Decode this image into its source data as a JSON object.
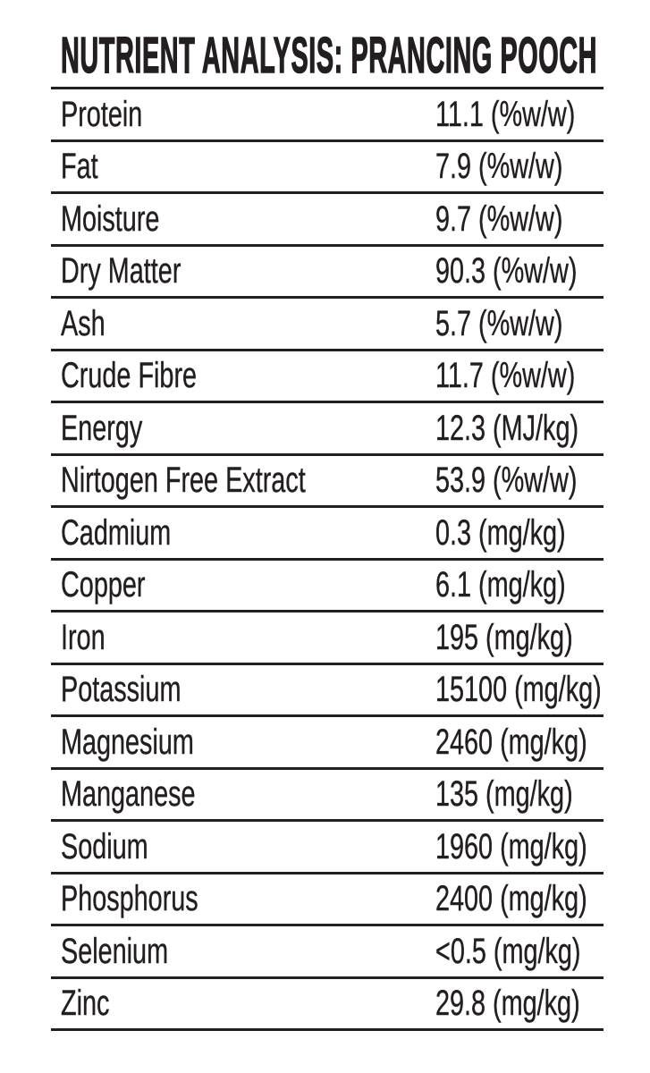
{
  "title": "NUTRIENT ANALYSIS: PRANCING POOCH",
  "colors": {
    "text": "#231f20",
    "rule": "#231f20",
    "background": "#ffffff"
  },
  "table": {
    "rows": [
      {
        "label": "Protein",
        "value": "11.1 (%w/w)"
      },
      {
        "label": "Fat",
        "value": "7.9 (%w/w)"
      },
      {
        "label": "Moisture",
        "value": "9.7 (%w/w)"
      },
      {
        "label": "Dry Matter",
        "value": "90.3 (%w/w)"
      },
      {
        "label": "Ash",
        "value": "5.7 (%w/w)"
      },
      {
        "label": "Crude Fibre",
        "value": "11.7 (%w/w)"
      },
      {
        "label": "Energy",
        "value": "12.3 (MJ/kg)"
      },
      {
        "label": "Nirtogen Free Extract",
        "value": "53.9 (%w/w)"
      },
      {
        "label": "Cadmium",
        "value": "0.3 (mg/kg)"
      },
      {
        "label": "Copper",
        "value": "6.1 (mg/kg)"
      },
      {
        "label": "Iron",
        "value": "195 (mg/kg)"
      },
      {
        "label": "Potassium",
        "value": "15100 (mg/kg)"
      },
      {
        "label": "Magnesium",
        "value": "2460 (mg/kg)"
      },
      {
        "label": "Manganese",
        "value": "135 (mg/kg)"
      },
      {
        "label": "Sodium",
        "value": "1960 (mg/kg)"
      },
      {
        "label": "Phosphorus",
        "value": "2400 (mg/kg)"
      },
      {
        "label": "Selenium",
        "value": "<0.5 (mg/kg)"
      },
      {
        "label": "Zinc",
        "value": "29.8 (mg/kg)"
      }
    ]
  }
}
